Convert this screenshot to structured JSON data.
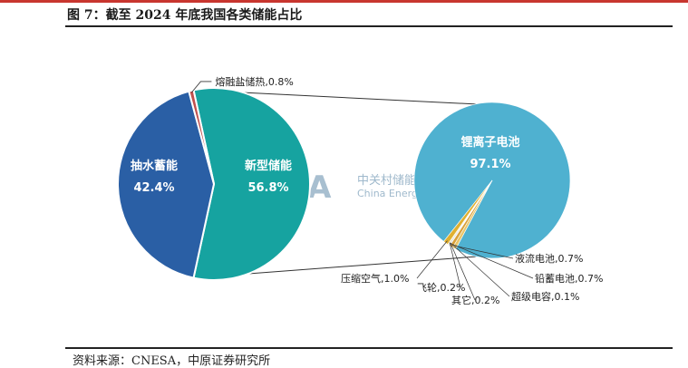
{
  "header": {
    "title": "图 7：截至 2024 年底我国各类储能占比",
    "accent_color": "#c8362f"
  },
  "footer": {
    "source": "资料来源：CNESA，中原证券研究所"
  },
  "watermark": {
    "logo_text": "CNESA",
    "cn": "中关村储能产业技术联盟",
    "en": "China Energy Storage Alliance"
  },
  "chart_data": {
    "type": "pie",
    "subtype": "pie-of-pie",
    "main": {
      "slices": [
        {
          "label": "新型储能",
          "value": 56.8,
          "value_label": "56.8%",
          "color": "#16a3a0"
        },
        {
          "label": "抽水蓄能",
          "value": 42.4,
          "value_label": "42.4%",
          "color": "#2a5fa5"
        },
        {
          "label": "熔融盐储热",
          "value": 0.8,
          "value_label": "0.8%",
          "color": "#c0504d"
        }
      ]
    },
    "breakout": {
      "of": "新型储能",
      "slices": [
        {
          "label": "锂离子电池",
          "value": 97.1,
          "value_label": "97.1%",
          "color": "#4fb1d0"
        },
        {
          "label": "液流电池",
          "value": 0.7,
          "value_label": "0.7%",
          "color": "#e8c66a"
        },
        {
          "label": "铅蓄电池",
          "value": 0.7,
          "value_label": "0.7%",
          "color": "#d9a13c"
        },
        {
          "label": "超级电容",
          "value": 0.1,
          "value_label": "0.1%",
          "color": "#7f7f7f"
        },
        {
          "label": "其它",
          "value": 0.2,
          "value_label": "0.2%",
          "color": "#a5a5a5"
        },
        {
          "label": "飞轮",
          "value": 0.2,
          "value_label": "0.2%",
          "color": "#f2dd8c"
        },
        {
          "label": "压缩空气",
          "value": 1.0,
          "value_label": "1.0%",
          "color": "#e0b030"
        }
      ]
    }
  }
}
